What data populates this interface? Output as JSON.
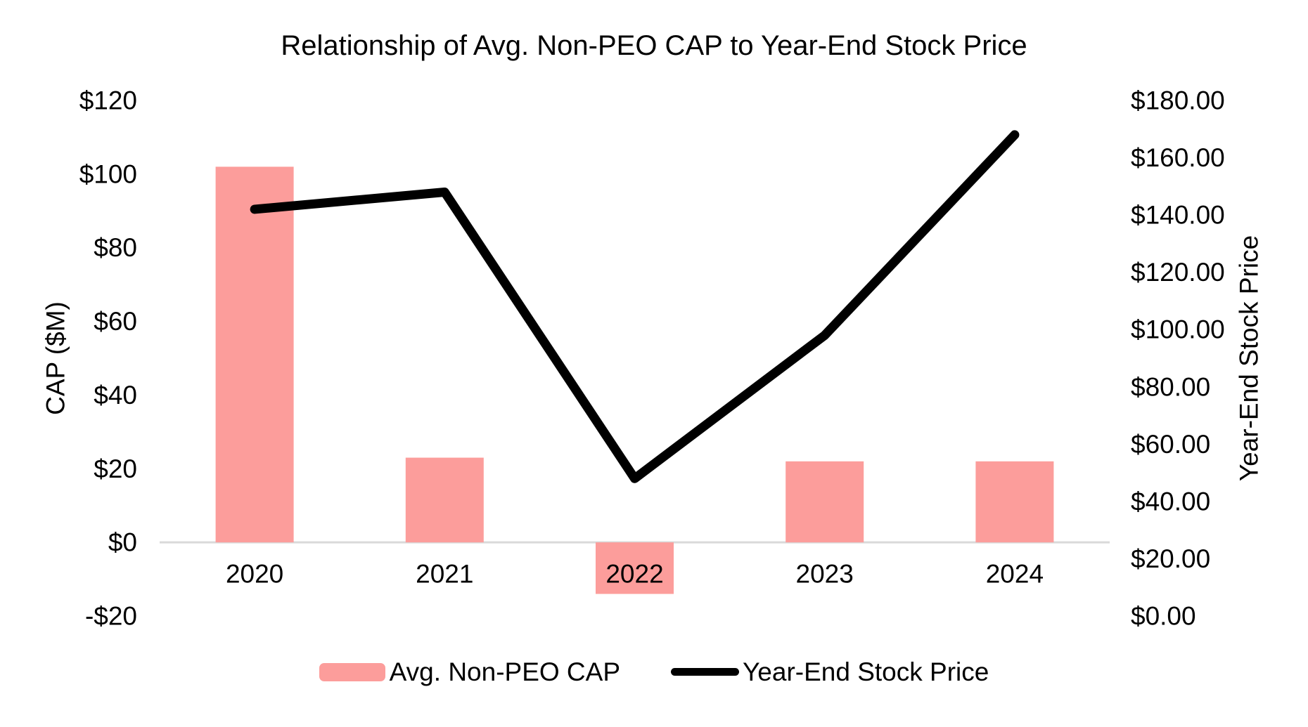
{
  "chart_data": {
    "type": "combo",
    "title": "Relationship of Avg. Non-PEO CAP to Year-End Stock Price",
    "categories": [
      "2020",
      "2021",
      "2022",
      "2023",
      "2024"
    ],
    "series": [
      {
        "name": "Avg. Non-PEO CAP",
        "type": "bar",
        "axis": "left",
        "color": "#FC9D9B",
        "values": [
          102,
          23,
          -14,
          22,
          22
        ]
      },
      {
        "name": "Year-End Stock Price",
        "type": "line",
        "axis": "right",
        "color": "#000000",
        "values": [
          142,
          148,
          48,
          98,
          168
        ]
      }
    ],
    "left_axis": {
      "title": "CAP ($M)",
      "min": -20,
      "max": 120,
      "tick_step": 20,
      "tick_labels": [
        "$120",
        "$100",
        "$80",
        "$60",
        "$40",
        "$20",
        "$0",
        "-$20"
      ]
    },
    "right_axis": {
      "title": "Year-End Stock Price",
      "min": 0,
      "max": 180,
      "tick_step": 20,
      "tick_labels": [
        "$180.00",
        "$160.00",
        "$140.00",
        "$120.00",
        "$100.00",
        "$80.00",
        "$60.00",
        "$40.00",
        "$20.00",
        "$0.00"
      ]
    },
    "axis_line_color": "#D9D9D9",
    "grid": false,
    "legend_position": "bottom"
  }
}
